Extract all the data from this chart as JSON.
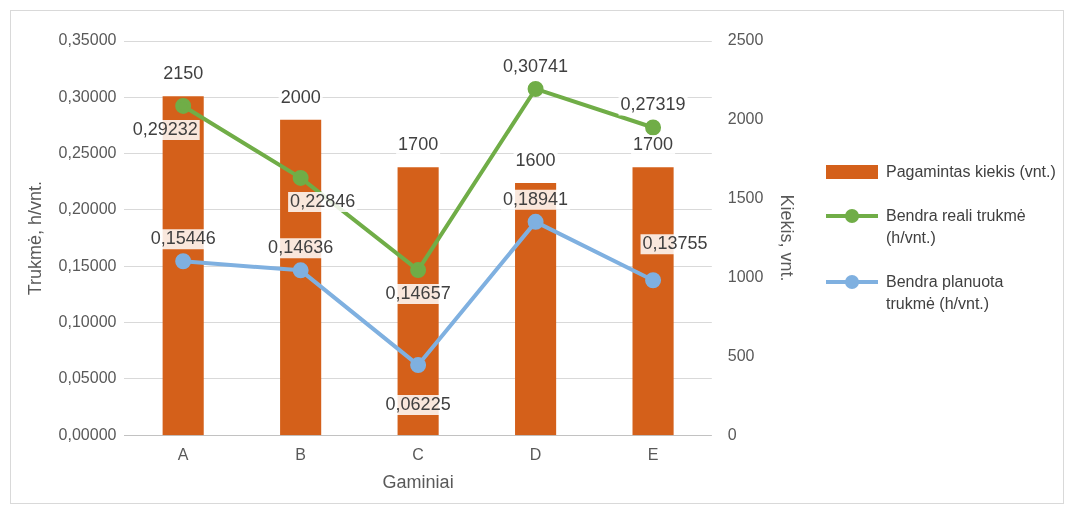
{
  "chart_data": {
    "type": "bar",
    "xlabel": "Gaminiai",
    "ylabel": "Trukmė, h/vnt.",
    "y2label": "Kiekis, vnt.",
    "categories": [
      "A",
      "B",
      "C",
      "D",
      "E"
    ],
    "series": [
      {
        "name": "Pagamintas kiekis (vnt.)",
        "axis": "y2",
        "color": "#d4601a",
        "values": [
          2150,
          2000,
          1700,
          1600,
          1700
        ],
        "value_labels": [
          "2150",
          "2000",
          "1700",
          "1600",
          "1700"
        ]
      },
      {
        "name": "Bendra reali trukmė (h/vnt.)",
        "type": "line",
        "color": "#70ad47",
        "values": [
          0.29232,
          0.22846,
          0.14657,
          0.30741,
          0.27319
        ],
        "value_labels": [
          "0,29232",
          "0,22846",
          "0,14657",
          "0,30741",
          "0,27319"
        ]
      },
      {
        "name": "Bendra planuota trukmė (h/vnt.)",
        "type": "line",
        "color": "#7fb0e0",
        "values": [
          0.15446,
          0.14636,
          0.06225,
          0.18941,
          0.13755
        ],
        "value_labels": [
          "0,15446",
          "0,14636",
          "0,06225",
          "0,18941",
          "0,13755"
        ]
      }
    ],
    "ylim": [
      0,
      0.35
    ],
    "yticks": [
      {
        "value": 0,
        "label": "0,00000"
      },
      {
        "value": 0.05,
        "label": "0,05000"
      },
      {
        "value": 0.1,
        "label": "0,10000"
      },
      {
        "value": 0.15,
        "label": "0,15000"
      },
      {
        "value": 0.2,
        "label": "0,20000"
      },
      {
        "value": 0.25,
        "label": "0,25000"
      },
      {
        "value": 0.3,
        "label": "0,30000"
      },
      {
        "value": 0.35,
        "label": "0,35000"
      }
    ],
    "y2lim": [
      0,
      2500
    ],
    "y2ticks": [
      0,
      500,
      1000,
      1500,
      2000,
      2500
    ],
    "grid": "y",
    "legend": "right",
    "marker": "circle"
  }
}
